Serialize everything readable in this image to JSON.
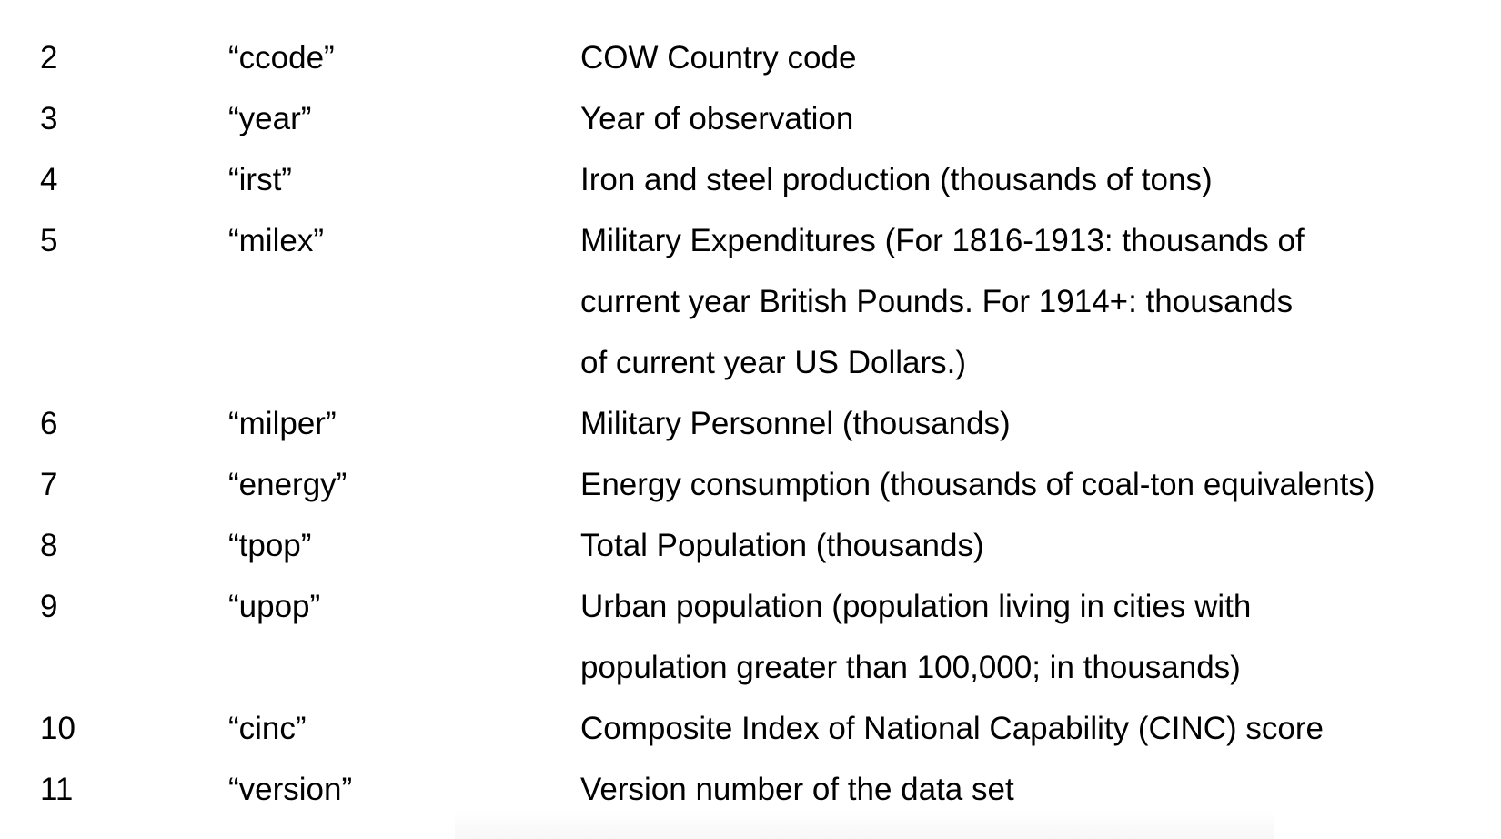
{
  "rows": [
    {
      "num": "2",
      "var": "“ccode”",
      "desc": [
        "COW Country code"
      ]
    },
    {
      "num": "3",
      "var": "“year”",
      "desc": [
        "Year of observation"
      ]
    },
    {
      "num": "4",
      "var": "“irst”",
      "desc": [
        "Iron and steel production (thousands of tons)"
      ]
    },
    {
      "num": "5",
      "var": "“milex”",
      "desc": [
        "Military Expenditures (For 1816-1913: thousands of",
        "current year British Pounds. For 1914+: thousands",
        "of current year US Dollars.)"
      ]
    },
    {
      "num": "6",
      "var": "“milper”",
      "desc": [
        "Military Personnel (thousands)"
      ]
    },
    {
      "num": "7",
      "var": "“energy”",
      "desc": [
        "Energy consumption (thousands of coal-ton equivalents)"
      ]
    },
    {
      "num": "8",
      "var": "“tpop”",
      "desc": [
        "Total Population (thousands)"
      ]
    },
    {
      "num": "9",
      "var": "“upop”",
      "desc": [
        "Urban population (population living in cities with",
        "population greater than 100,000; in thousands)"
      ]
    },
    {
      "num": "10",
      "var": "“cinc”",
      "desc": [
        "Composite Index of National Capability (CINC) score"
      ]
    },
    {
      "num": "11",
      "var": "“version”",
      "desc": [
        "Version number of the data set"
      ]
    }
  ]
}
